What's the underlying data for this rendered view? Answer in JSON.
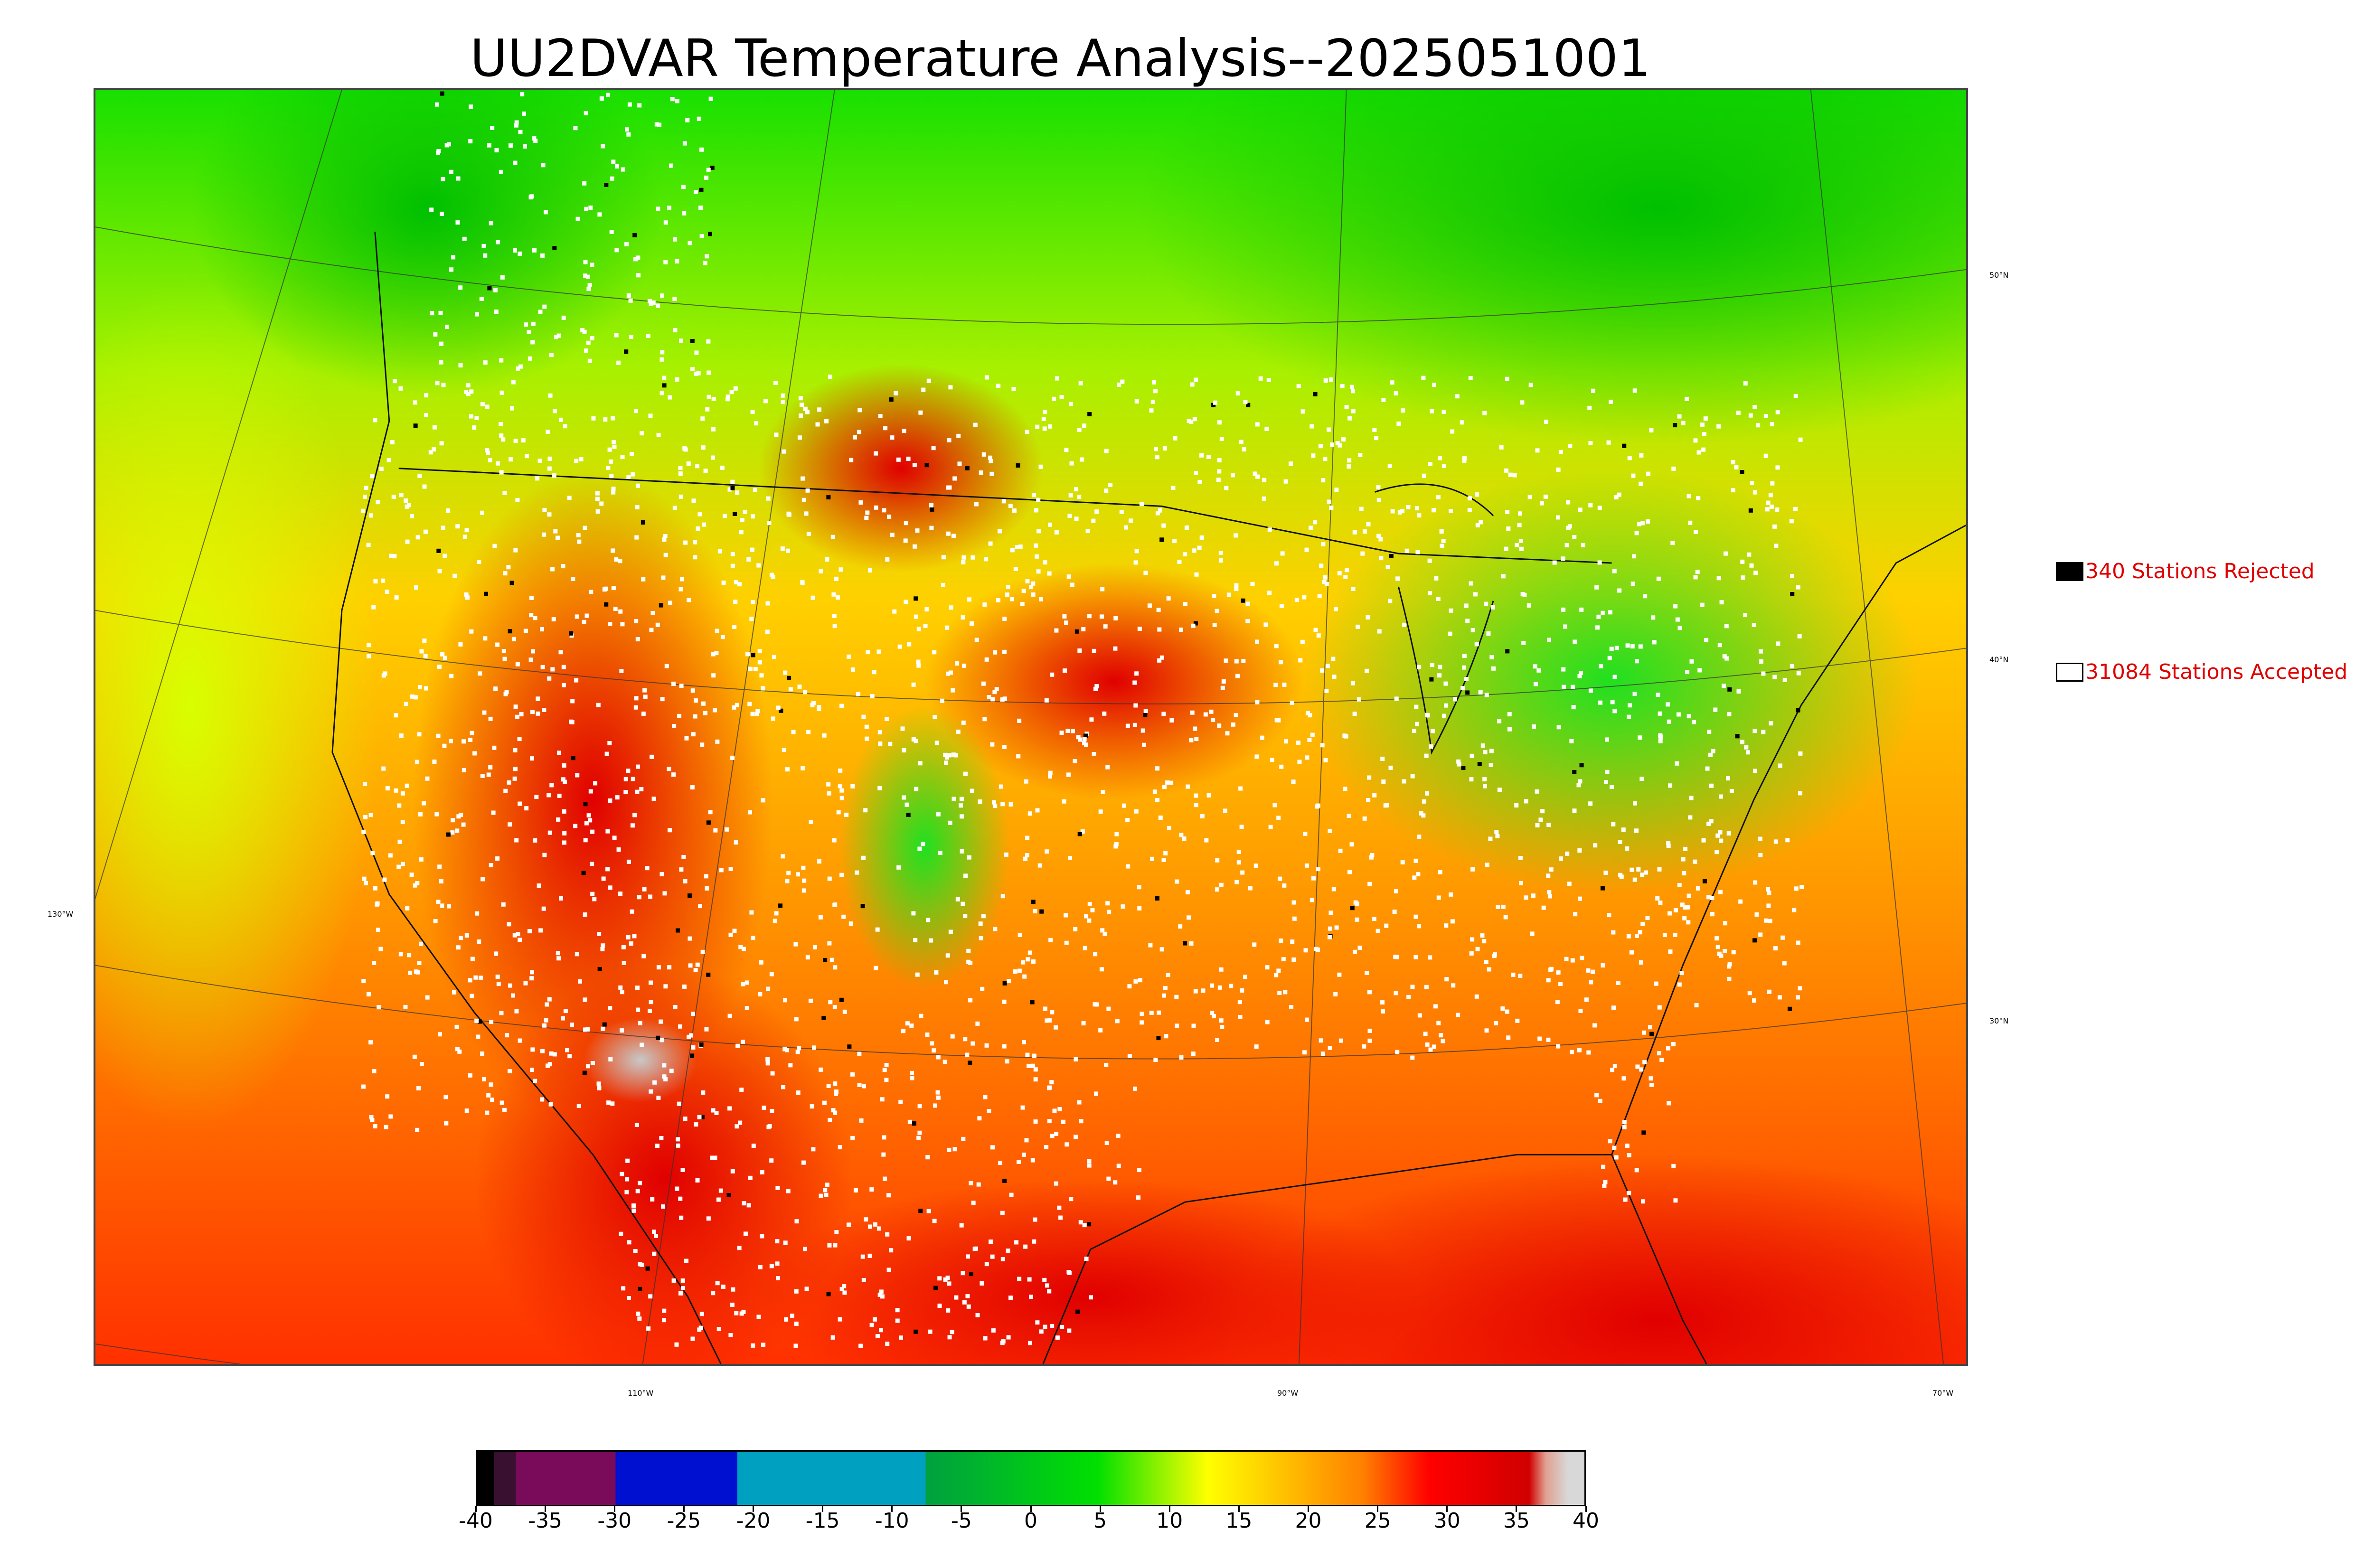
{
  "title": "UU2DVAR Temperature Analysis--2025051001",
  "grid_labels": {
    "lat_50": "50°N",
    "lat_40": "40°N",
    "lat_30": "30°N",
    "lon_130": "130°W",
    "lon_110": "110°W",
    "lon_90": "90°W",
    "lon_70": "70°W"
  },
  "legend": {
    "rejected": {
      "label": "340 Stations Rejected",
      "color": "#000000"
    },
    "accepted": {
      "label": "31084 Stations Accepted",
      "color": "#ffffff"
    }
  },
  "colorbar": {
    "ticks": [
      "-40",
      "-35",
      "-30",
      "-25",
      "-20",
      "-15",
      "-10",
      "-5",
      "0",
      "5",
      "10",
      "15",
      "20",
      "25",
      "30",
      "35",
      "40"
    ],
    "range": [
      -40,
      40
    ],
    "colors": {
      "c1": "#000000",
      "c2": "#3a1030",
      "c3": "#7a0a5a",
      "c4": "#0010d0",
      "c5": "#00a0c0",
      "c6": "#00a040",
      "c7": "#00e000",
      "c8": "#ffff00",
      "c9": "#ff8000",
      "c10": "#ff0000",
      "c11": "#d00000",
      "c12": "#e0a090",
      "c13": "#d8d8d8"
    }
  }
}
